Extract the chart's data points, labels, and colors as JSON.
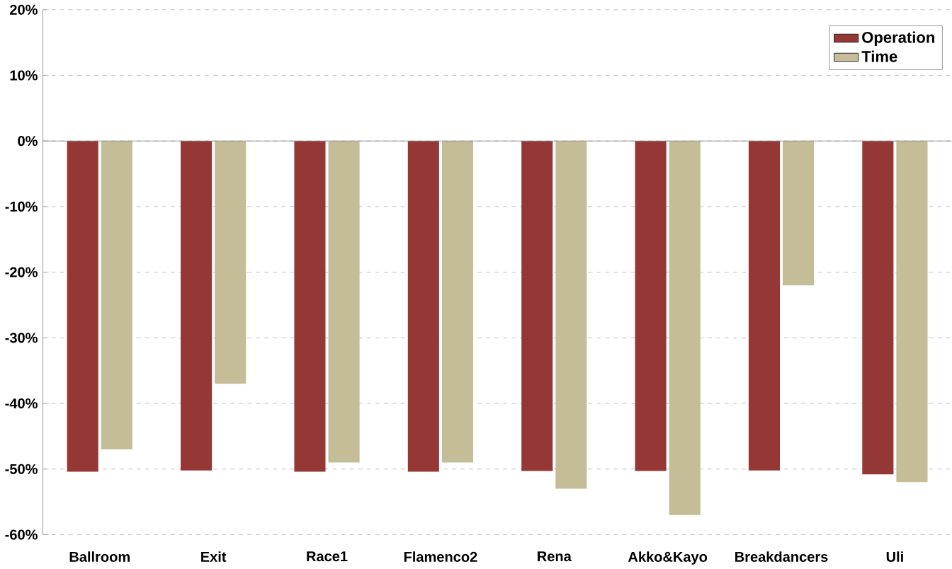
{
  "chart_data": {
    "type": "bar",
    "categories": [
      "Ballroom",
      "Exit",
      "Race1",
      "Flamenco2",
      "Rena",
      "Akko&Kayo",
      "Breakdancers",
      "Uli"
    ],
    "series": [
      {
        "name": "Operation",
        "color": "#953735",
        "values": [
          -50.4,
          -50.2,
          -50.4,
          -50.4,
          -50.3,
          -50.3,
          -50.2,
          -50.8
        ]
      },
      {
        "name": "Time",
        "color": "#c4bd97",
        "values": [
          -47,
          -37,
          -49,
          -49,
          -53,
          -57,
          -22,
          -52
        ]
      }
    ],
    "ylim": [
      -60,
      20
    ],
    "yticks": [
      {
        "value": -60,
        "label": "-60%"
      },
      {
        "value": -50,
        "label": "-50%"
      },
      {
        "value": -40,
        "label": "-40%"
      },
      {
        "value": -30,
        "label": "-30%"
      },
      {
        "value": -20,
        "label": "-20%"
      },
      {
        "value": -10,
        "label": "-10%"
      },
      {
        "value": 0,
        "label": "0%"
      },
      {
        "value": 10,
        "label": "10%"
      },
      {
        "value": 20,
        "label": "20%"
      }
    ],
    "grid": "y",
    "legend": "top right"
  }
}
